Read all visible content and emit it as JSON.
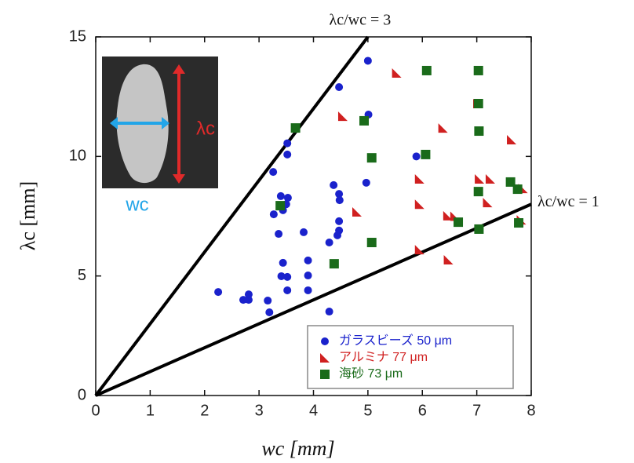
{
  "chart_data": {
    "type": "scatter",
    "x_label": "wc [mm]",
    "y_label": "λc [mm]",
    "xlim": [
      0,
      8
    ],
    "ylim": [
      0,
      15
    ],
    "xticks": [
      0,
      1,
      2,
      3,
      4,
      5,
      6,
      7,
      8
    ],
    "yticks": [
      0,
      5,
      10,
      15
    ],
    "legend": "lower right",
    "reference_lines": [
      {
        "slope": 3,
        "label": "λc/wc = 3"
      },
      {
        "slope": 1,
        "label": "λc/wc = 1"
      }
    ],
    "inset_labels": {
      "height": "λc",
      "width": "wc"
    },
    "series": [
      {
        "name": "ガラスビーズ 50 μm",
        "color": "#1a22cc",
        "marker": "circle",
        "x": [
          5.0,
          4.47,
          5.01,
          3.52,
          3.52,
          5.89,
          3.26,
          4.97,
          4.37,
          4.47,
          3.4,
          3.53,
          3.5,
          3.27,
          3.44,
          4.48,
          4.47,
          4.47,
          4.44,
          3.36,
          3.82,
          4.29,
          3.44,
          3.41,
          3.9,
          3.9,
          3.52,
          3.9,
          3.52,
          2.25,
          2.81,
          2.71,
          2.81,
          3.16,
          3.19,
          4.29
        ],
        "values": [
          14.0,
          12.9,
          11.75,
          10.55,
          10.08,
          10.0,
          9.35,
          8.9,
          8.8,
          8.43,
          8.34,
          8.27,
          8.0,
          7.58,
          7.75,
          8.17,
          7.29,
          6.9,
          6.7,
          6.76,
          6.83,
          6.4,
          5.55,
          4.99,
          5.65,
          5.02,
          4.96,
          4.4,
          4.4,
          4.33,
          4.23,
          4.0,
          4.0,
          3.97,
          3.48,
          3.51
        ]
      },
      {
        "name": "アルミナ 77 μm",
        "color": "#d02020",
        "marker": "triangle",
        "x": [
          5.53,
          4.54,
          6.38,
          7.02,
          7.05,
          7.64,
          5.95,
          7.25,
          4.8,
          5.95,
          6.47,
          7.82,
          7.2,
          7.85,
          5.95,
          6.48,
          6.6
        ],
        "values": [
          13.49,
          11.68,
          11.19,
          12.21,
          9.06,
          10.7,
          9.06,
          9.06,
          7.68,
          8.0,
          7.52,
          7.35,
          8.07,
          8.66,
          6.1,
          5.68,
          7.5
        ]
      },
      {
        "name": "海砂 73 μm",
        "color": "#1a6b1a",
        "marker": "square",
        "x": [
          3.67,
          4.93,
          6.08,
          7.03,
          7.03,
          7.04,
          5.07,
          6.06,
          7.62,
          7.75,
          7.03,
          3.39,
          6.66,
          7.04,
          7.77,
          5.07,
          4.38
        ],
        "values": [
          11.19,
          11.49,
          13.59,
          13.59,
          12.21,
          11.06,
          9.94,
          10.08,
          8.93,
          8.63,
          8.53,
          7.94,
          7.25,
          6.96,
          7.22,
          6.4,
          5.51
        ]
      }
    ]
  }
}
